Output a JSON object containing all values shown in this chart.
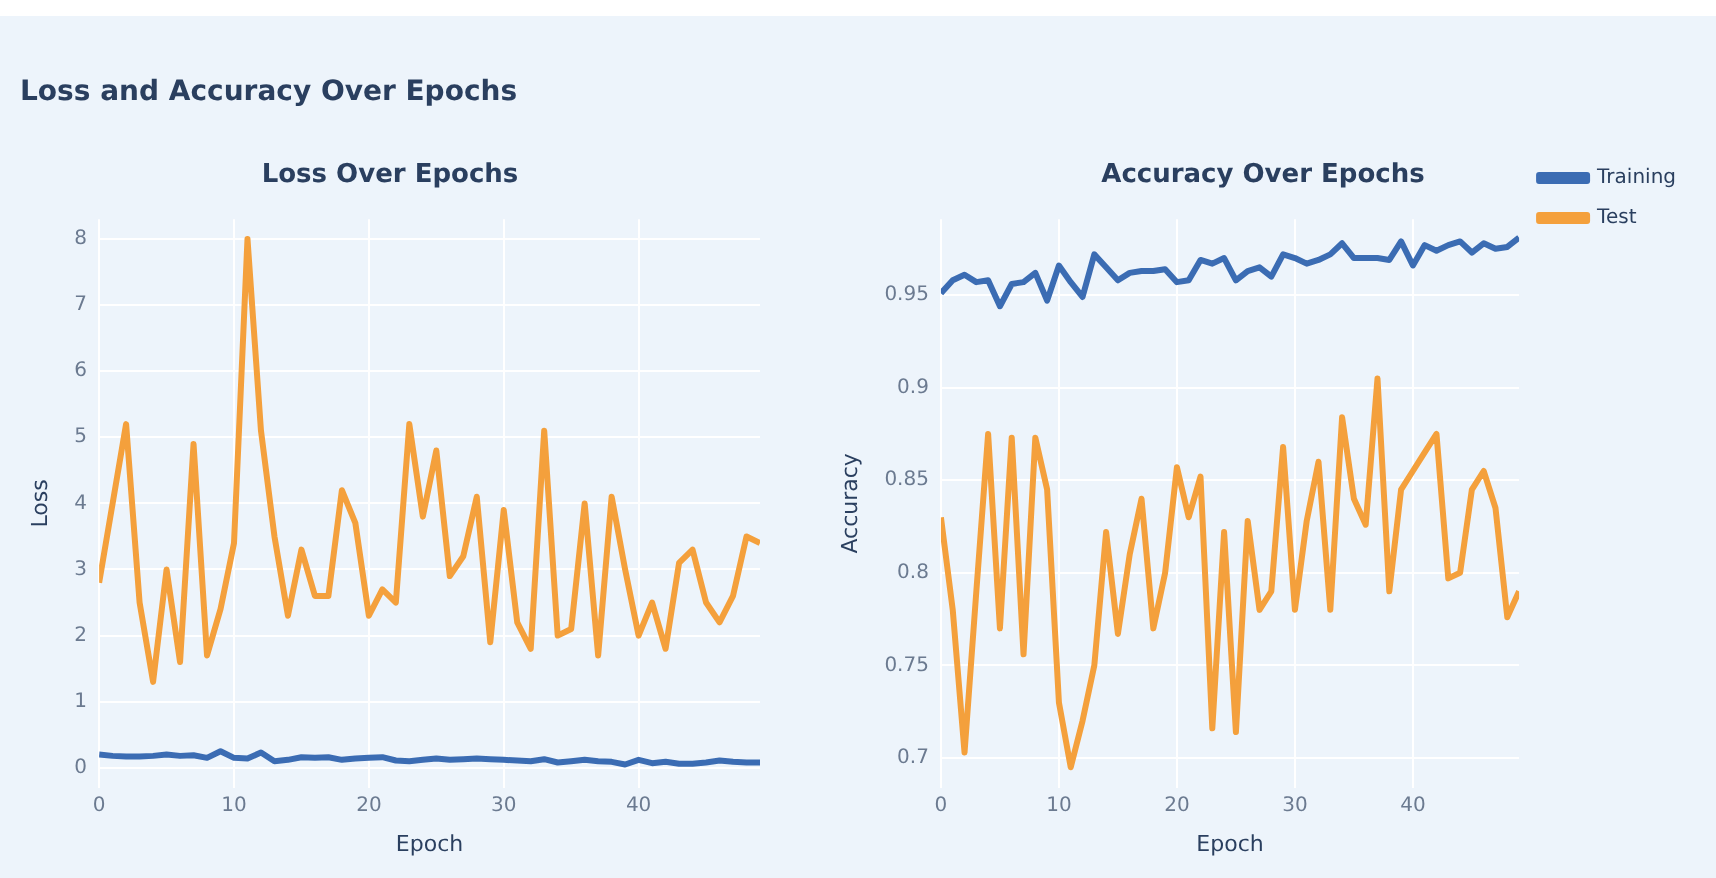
{
  "chart_data": [
    {
      "type": "line",
      "title": "Loss and Accuracy Over Epochs",
      "subtitle": "Loss Over Epochs",
      "xlabel": "Epoch",
      "ylabel": "Loss",
      "x": [
        0,
        1,
        2,
        3,
        4,
        5,
        6,
        7,
        8,
        9,
        10,
        11,
        12,
        13,
        14,
        15,
        16,
        17,
        18,
        19,
        20,
        21,
        22,
        23,
        24,
        25,
        26,
        27,
        28,
        29,
        30,
        31,
        32,
        33,
        34,
        35,
        36,
        37,
        38,
        39,
        40,
        41,
        42,
        43,
        44,
        45,
        46,
        47,
        48,
        49
      ],
      "series": [
        {
          "color": "#3b6cb3",
          "values": [
            0.2,
            0.18,
            0.17,
            0.17,
            0.18,
            0.2,
            0.18,
            0.19,
            0.15,
            0.25,
            0.15,
            0.14,
            0.23,
            0.1,
            0.12,
            0.16,
            0.15,
            0.16,
            0.12,
            0.14,
            0.15,
            0.16,
            0.11,
            0.1,
            0.12,
            0.14,
            0.12,
            0.13,
            0.14,
            0.13,
            0.12,
            0.11,
            0.1,
            0.13,
            0.08,
            0.1,
            0.12,
            0.1,
            0.09,
            0.05,
            0.12,
            0.07,
            0.09,
            0.06,
            0.06,
            0.08,
            0.11,
            0.09,
            0.08,
            0.08
          ]
        },
        {
          "color": "#f4a03c",
          "values": [
            2.8,
            4.0,
            5.2,
            2.5,
            1.3,
            3.0,
            1.6,
            4.9,
            1.7,
            2.4,
            3.4,
            8.0,
            5.1,
            3.5,
            2.3,
            3.3,
            2.6,
            2.6,
            4.2,
            3.7,
            2.3,
            2.7,
            2.5,
            5.2,
            3.8,
            4.8,
            2.9,
            3.2,
            4.1,
            1.9,
            3.9,
            2.2,
            1.8,
            5.1,
            2.0,
            2.1,
            4.0,
            1.7,
            4.1,
            3.0,
            2.0,
            2.5,
            1.8,
            3.1,
            3.3,
            2.5,
            2.2,
            2.6,
            3.5,
            3.4
          ]
        }
      ],
      "xlim": [
        0,
        49
      ],
      "xticks": [
        0,
        10,
        20,
        30,
        40
      ],
      "ylim": [
        -0.3,
        8.3
      ],
      "yticks": [
        0,
        1,
        2,
        3,
        4,
        5,
        6,
        7,
        8
      ],
      "grid": true,
      "marker": "none",
      "line_style": "solid"
    },
    {
      "type": "line",
      "subtitle": "Accuracy Over Epochs",
      "xlabel": "Epoch",
      "ylabel": "Accuracy",
      "x": [
        0,
        1,
        2,
        3,
        4,
        5,
        6,
        7,
        8,
        9,
        10,
        11,
        12,
        13,
        14,
        15,
        16,
        17,
        18,
        19,
        20,
        21,
        22,
        23,
        24,
        25,
        26,
        27,
        28,
        29,
        30,
        31,
        32,
        33,
        34,
        35,
        36,
        37,
        38,
        39,
        40,
        41,
        42,
        43,
        44,
        45,
        46,
        47,
        48,
        49
      ],
      "series": [
        {
          "name": "Training",
          "color": "#3b6cb3",
          "values": [
            0.951,
            0.958,
            0.961,
            0.957,
            0.958,
            0.944,
            0.956,
            0.957,
            0.962,
            0.947,
            0.966,
            0.957,
            0.949,
            0.972,
            0.965,
            0.958,
            0.962,
            0.963,
            0.963,
            0.964,
            0.957,
            0.958,
            0.969,
            0.967,
            0.97,
            0.958,
            0.963,
            0.965,
            0.96,
            0.972,
            0.97,
            0.967,
            0.969,
            0.972,
            0.978,
            0.97,
            0.97,
            0.97,
            0.969,
            0.979,
            0.966,
            0.977,
            0.974,
            0.977,
            0.979,
            0.973,
            0.978,
            0.975,
            0.976,
            0.981
          ]
        },
        {
          "name": "Test",
          "color": "#f4a03c",
          "values": [
            0.83,
            0.78,
            0.703,
            0.79,
            0.875,
            0.77,
            0.873,
            0.756,
            0.873,
            0.845,
            0.73,
            0.695,
            0.72,
            0.75,
            0.822,
            0.767,
            0.81,
            0.84,
            0.77,
            0.8,
            0.857,
            0.83,
            0.852,
            0.716,
            0.822,
            0.714,
            0.828,
            0.78,
            0.79,
            0.868,
            0.78,
            0.828,
            0.86,
            0.78,
            0.884,
            0.84,
            0.826,
            0.905,
            0.79,
            0.845,
            0.855,
            0.865,
            0.875,
            0.797,
            0.8,
            0.845,
            0.855,
            0.835,
            0.776,
            0.79
          ]
        }
      ],
      "xlim": [
        0,
        49
      ],
      "xticks": [
        0,
        10,
        20,
        30,
        40
      ],
      "ylim": [
        0.684,
        0.991
      ],
      "yticks": [
        0.7,
        0.75,
        0.8,
        0.85,
        0.9,
        0.95
      ],
      "grid": true,
      "legend": "top right",
      "marker": "none",
      "line_style": "solid"
    }
  ]
}
